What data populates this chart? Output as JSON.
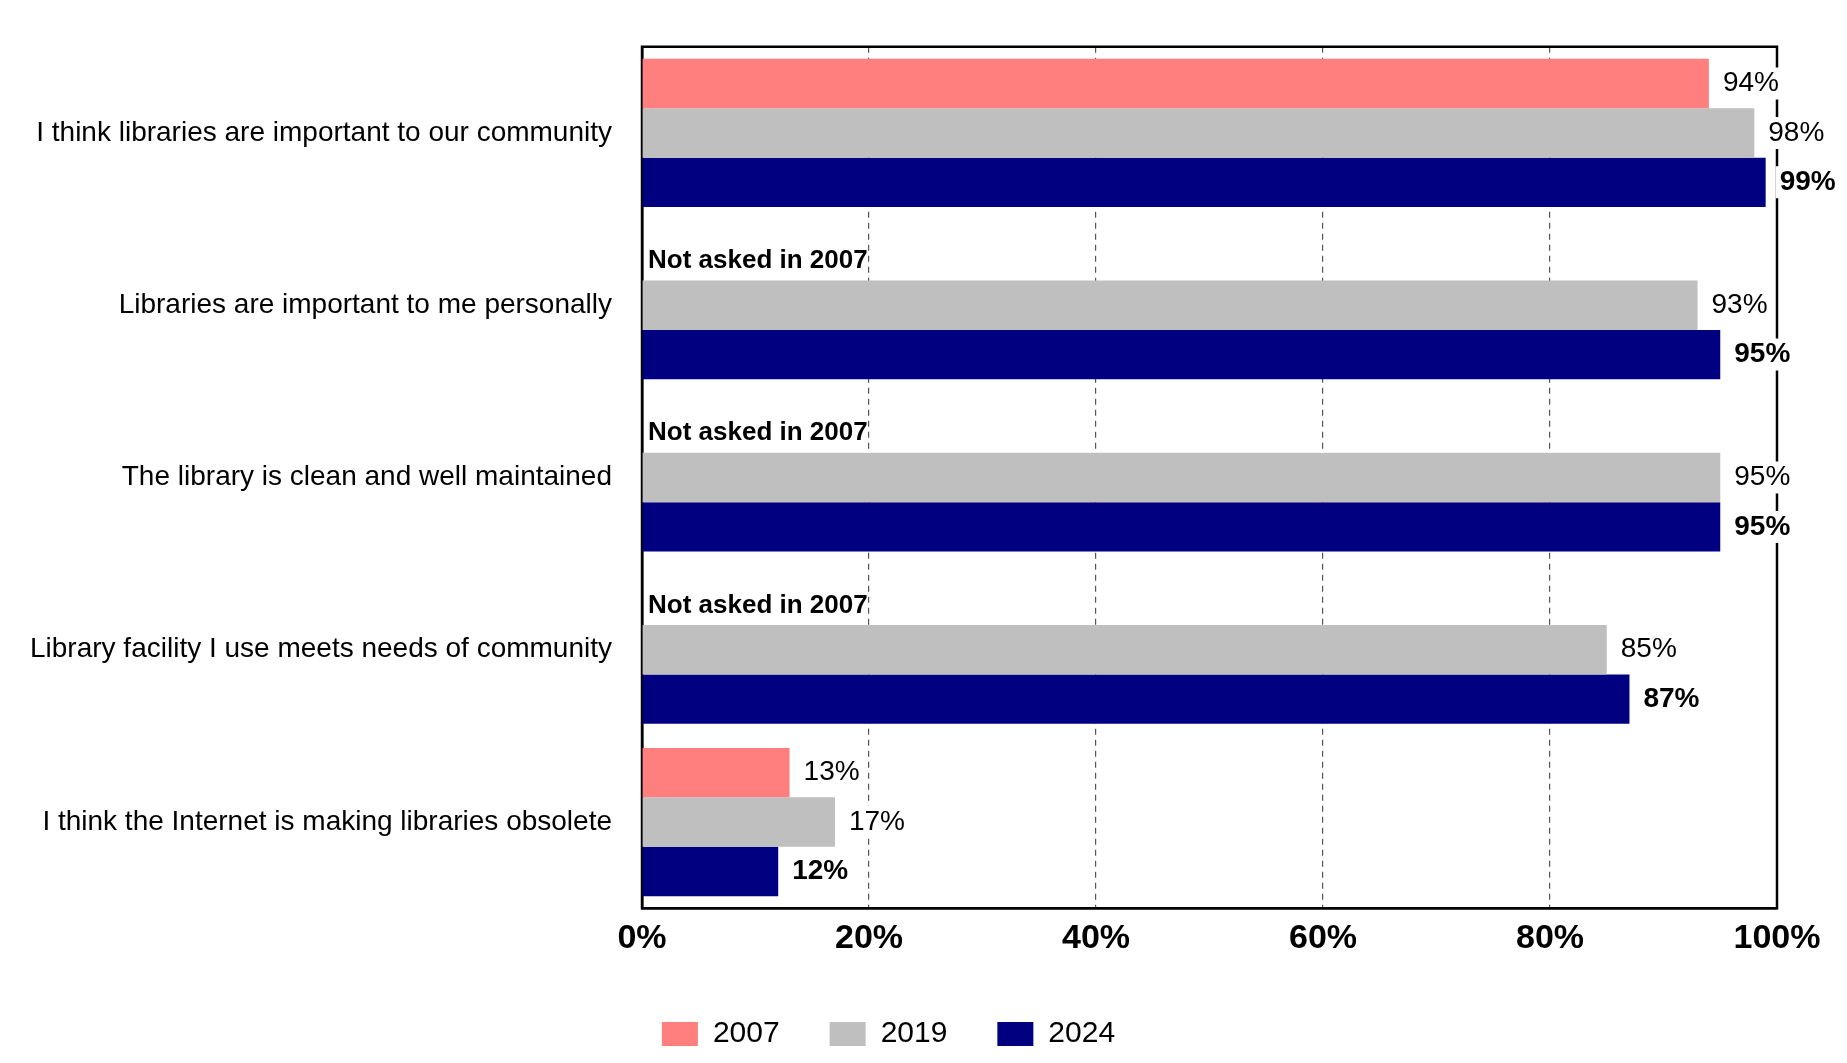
{
  "chart_data": {
    "type": "bar",
    "orientation": "horizontal",
    "categories": [
      "I think libraries are important to our community",
      "Libraries are important to me personally",
      "The library is clean and well maintained",
      "Library facility I use meets needs of community",
      "I think the Internet is making libraries obsolete"
    ],
    "series": [
      {
        "name": "2007",
        "color": "#ff7f7f",
        "values": [
          94,
          null,
          null,
          null,
          13
        ],
        "value_labels": [
          "94%",
          null,
          null,
          null,
          "13%"
        ]
      },
      {
        "name": "2019",
        "color": "#bfbfbf",
        "values": [
          98,
          93,
          95,
          85,
          17
        ],
        "value_labels": [
          "98%",
          "93%",
          "95%",
          "85%",
          "17%"
        ]
      },
      {
        "name": "2024",
        "color": "#000080",
        "values": [
          99,
          95,
          95,
          87,
          12
        ],
        "value_labels": [
          "99%",
          "95%",
          "95%",
          "87%",
          "12%"
        ]
      }
    ],
    "xlim": [
      0,
      100
    ],
    "xticks": [
      {
        "value": 0,
        "label": "0%"
      },
      {
        "value": 20,
        "label": "20%"
      },
      {
        "value": 40,
        "label": "40%"
      },
      {
        "value": 60,
        "label": "60%"
      },
      {
        "value": 80,
        "label": "80%"
      },
      {
        "value": 100,
        "label": "100%"
      }
    ],
    "grid": "x",
    "legend": "bottom",
    "annotations": [
      "Not asked in 2007",
      "Not asked in 2007",
      "Not asked in 2007"
    ]
  }
}
